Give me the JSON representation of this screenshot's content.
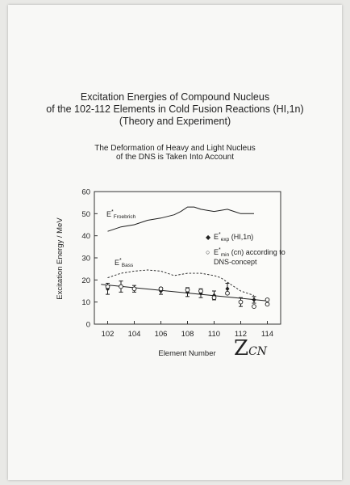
{
  "title_lines": [
    "Excitation Energies of Compound Nucleus",
    "of the 102-112  Elements  in Cold Fusion Reactions (HI,1n)",
    "(Theory and Experiment)"
  ],
  "subtitle_lines": [
    "The Deformation of Heavy and Light Nucleus",
    "of the DNS is Taken Into Account"
  ],
  "handwritten_label": "Z",
  "handwritten_sub": "CN",
  "chart_data": {
    "type": "line",
    "xlabel": "Element Number",
    "ylabel": "Excitation Energy  / MeV",
    "xlim": [
      101,
      115
    ],
    "ylim": [
      0,
      60
    ],
    "xticks": [
      102,
      104,
      106,
      108,
      110,
      112,
      114
    ],
    "yticks": [
      0,
      10,
      20,
      30,
      40,
      50,
      60
    ],
    "annotations": [
      {
        "main": "E",
        "sup": "*",
        "sub": "Froebrich"
      },
      {
        "main": "E",
        "sup": "*",
        "sub": "Bass"
      }
    ],
    "legend": [
      {
        "marker": "◆",
        "main": "E",
        "sup": "*",
        "sub": "exp",
        "text": " (HI,1n)"
      },
      {
        "marker": "○",
        "main": "E",
        "sup": "*",
        "sub": "min",
        "text": " (cn) according to",
        "text2": "DNS-concept"
      }
    ],
    "series": [
      {
        "style": "solid",
        "x": [
          102,
          103,
          104,
          105,
          106,
          107,
          107.5,
          108,
          108.5,
          109,
          110,
          111,
          111.5,
          112,
          113
        ],
        "y": [
          42,
          44,
          45,
          47,
          48,
          49.5,
          51,
          53,
          53,
          52,
          51,
          52,
          51,
          50,
          50
        ]
      },
      {
        "style": "dashed",
        "x": [
          102,
          103,
          104,
          105,
          106,
          107,
          108,
          109,
          110,
          110.5,
          111,
          112,
          113
        ],
        "y": [
          21,
          23,
          24,
          24.5,
          24,
          22,
          23,
          23,
          22,
          21,
          19,
          15,
          13
        ]
      },
      {
        "style": "solid",
        "x": [
          101.5,
          114
        ],
        "y": [
          18,
          10.5
        ]
      },
      {
        "style": "markers-diamond",
        "x": [
          102,
          103,
          104,
          106,
          108,
          109,
          110,
          111,
          112,
          113
        ],
        "y": [
          16,
          17,
          16,
          15,
          14.5,
          14,
          13,
          16,
          10,
          11
        ],
        "err": [
          2.5,
          2.5,
          1.5,
          1.5,
          2,
          2,
          2,
          2.5,
          2,
          1.5
        ]
      },
      {
        "style": "markers-circle",
        "x": [
          102,
          103,
          104,
          106,
          108,
          109,
          110,
          111,
          112,
          113,
          114,
          114
        ],
        "y": [
          17,
          17,
          16,
          16,
          15.5,
          15,
          12,
          14,
          10,
          8,
          11,
          9
        ]
      }
    ]
  }
}
